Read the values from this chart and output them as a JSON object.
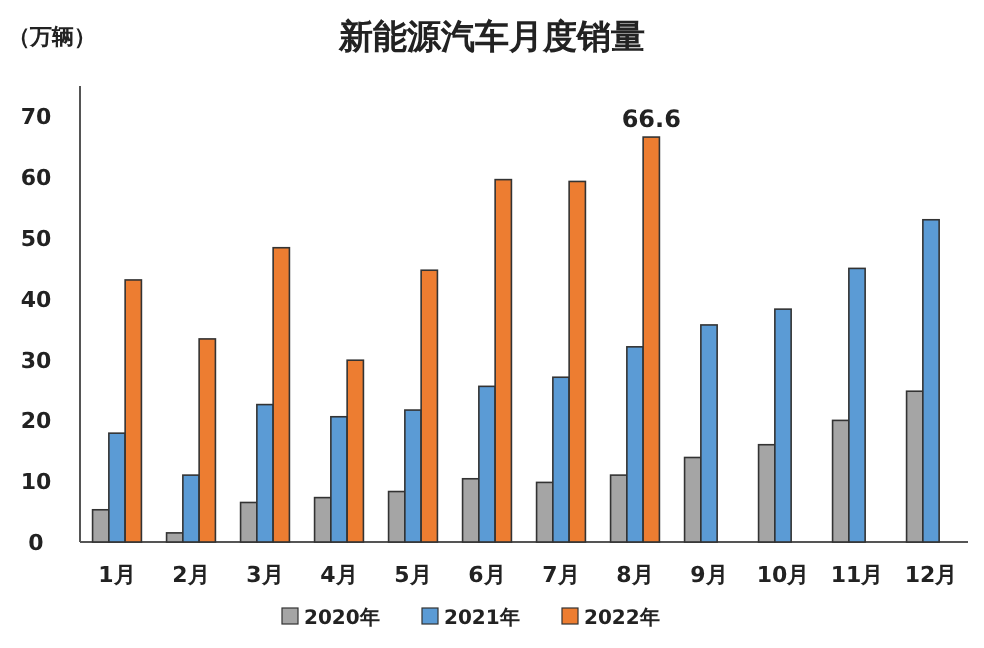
{
  "chart_data": {
    "type": "bar",
    "title": "新能源汽车月度销量",
    "ylabel": "（万辆）",
    "categories": [
      "1月",
      "2月",
      "3月",
      "4月",
      "5月",
      "6月",
      "7月",
      "8月",
      "9月",
      "10月",
      "11月",
      "12月"
    ],
    "series": [
      {
        "name": "2020年",
        "color": "#a5a5a5",
        "values": [
          5.3,
          1.5,
          6.5,
          7.3,
          8.3,
          10.4,
          9.8,
          11.0,
          13.9,
          16.0,
          20.0,
          24.8
        ]
      },
      {
        "name": "2021年",
        "color": "#5b9bd5",
        "values": [
          17.9,
          11.0,
          22.6,
          20.6,
          21.7,
          25.6,
          27.1,
          32.1,
          35.7,
          38.3,
          45.0,
          53.0
        ]
      },
      {
        "name": "2022年",
        "color": "#ed7d31",
        "values": [
          43.1,
          33.4,
          48.4,
          29.9,
          44.7,
          59.6,
          59.3,
          66.6,
          null,
          null,
          null,
          null
        ],
        "value_labels": [
          null,
          null,
          null,
          null,
          null,
          null,
          null,
          "66.6",
          null,
          null,
          null,
          null
        ]
      }
    ],
    "ylim": [
      0,
      75
    ],
    "yticks": [
      0,
      10,
      20,
      30,
      40,
      50,
      60,
      70
    ],
    "grid": false,
    "legend": "bottom"
  }
}
